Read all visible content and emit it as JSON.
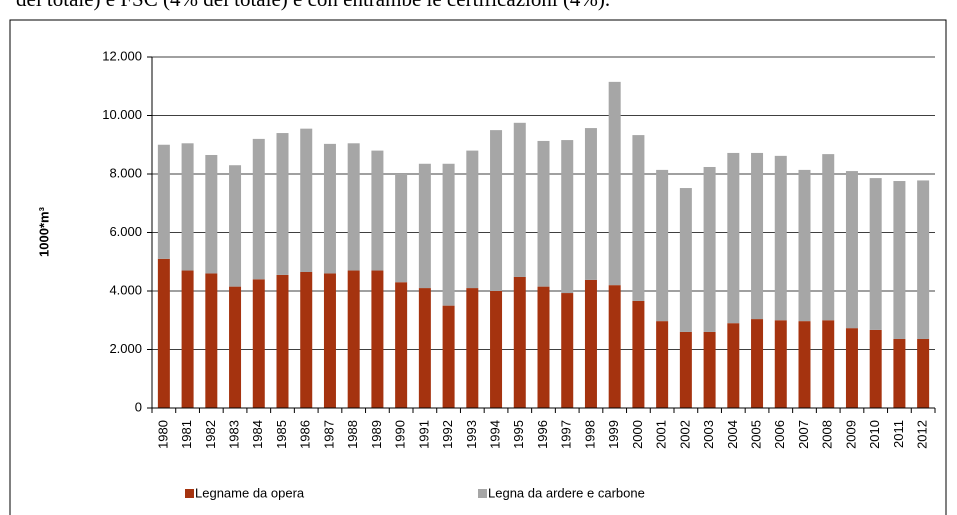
{
  "caption": "del totale) e FSC (4% del totale) e con entrambe le certificazioni (4%).",
  "chart_data": {
    "type": "bar",
    "stacked": true,
    "ylabel": "1000*m³",
    "categories": [
      "1980",
      "1981",
      "1982",
      "1983",
      "1984",
      "1985",
      "1986",
      "1987",
      "1988",
      "1989",
      "1990",
      "1991",
      "1992",
      "1993",
      "1994",
      "1995",
      "1996",
      "1997",
      "1998",
      "1999",
      "2000",
      "2001",
      "2002",
      "2003",
      "2004",
      "2005",
      "2006",
      "2007",
      "2008",
      "2009",
      "2010",
      "2011",
      "2012"
    ],
    "series": [
      {
        "name": "Legname da opera",
        "color": "#a5330f",
        "values": [
          5100,
          4700,
          4600,
          4150,
          4400,
          4550,
          4650,
          4600,
          4700,
          4700,
          4300,
          4100,
          3500,
          4100,
          4000,
          4480,
          4150,
          3930,
          4380,
          4200,
          3660,
          2970,
          2600,
          2600,
          2900,
          3040,
          3000,
          2970,
          3000,
          2730,
          2670,
          2360,
          2360
        ]
      },
      {
        "name": "Legna da ardere e carbone",
        "color": "#a6a6a6",
        "values": [
          3900,
          4350,
          4050,
          4150,
          4800,
          4850,
          4900,
          4430,
          4350,
          4100,
          3700,
          4250,
          4850,
          4700,
          5500,
          5270,
          4980,
          5230,
          5190,
          6950,
          5670,
          5170,
          4920,
          5640,
          5820,
          5680,
          5620,
          5170,
          5680,
          5370,
          5190,
          5400,
          5420
        ]
      }
    ],
    "ylim": [
      0,
      12000
    ],
    "yticks": [
      0,
      {
        "value": 2000,
        "label": "2.000"
      },
      {
        "value": 4000,
        "label": "4.000"
      },
      {
        "value": 6000,
        "label": "6.000"
      },
      {
        "value": 8000,
        "label": "8.000"
      },
      {
        "value": 10000,
        "label": "10.000"
      },
      {
        "value": 12000,
        "label": "12.000"
      }
    ],
    "grid": true,
    "legend": "bottom"
  }
}
